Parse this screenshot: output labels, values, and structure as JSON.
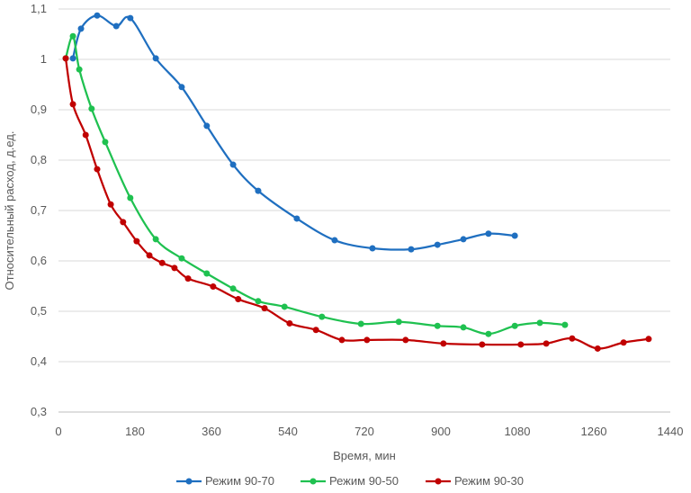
{
  "chart_data": {
    "type": "line",
    "title": "",
    "xlabel": "Время, мин",
    "ylabel": "Относительный расход, д.ед.",
    "xlim": [
      0,
      1440
    ],
    "ylim": [
      0.3,
      1.1
    ],
    "xticks": [
      0,
      180,
      360,
      540,
      720,
      900,
      1080,
      1260,
      1440
    ],
    "yticks": [
      0.3,
      0.4,
      0.5,
      0.6,
      0.7,
      0.8,
      0.9,
      1.0,
      1.1
    ],
    "xtick_labels": [
      "0",
      "180",
      "360",
      "540",
      "720",
      "900",
      "1080",
      "1260",
      "1440"
    ],
    "ytick_labels": [
      "0,3",
      "0,4",
      "0,5",
      "0,6",
      "0,7",
      "0,8",
      "0,9",
      "1",
      "1,1"
    ],
    "grid": "horizontal",
    "legend": "bottom",
    "series": [
      {
        "name": "Режим 90-70",
        "color": "#1f6fc0",
        "x": [
          34,
          53,
          91,
          136,
          169,
          229,
          290,
          349,
          411,
          470,
          561,
          650,
          739,
          830,
          892,
          953,
          1012,
          1074
        ],
        "y": [
          1.002,
          1.061,
          1.087,
          1.066,
          1.082,
          1.002,
          0.945,
          0.868,
          0.791,
          0.739,
          0.684,
          0.641,
          0.625,
          0.623,
          0.632,
          0.643,
          0.654,
          0.65
        ]
      },
      {
        "name": "Режим 90-50",
        "color": "#1fc150",
        "x": [
          17,
          34,
          49,
          78,
          110,
          169,
          229,
          290,
          349,
          411,
          470,
          532,
          620,
          712,
          801,
          892,
          953,
          1012,
          1074,
          1133,
          1192
        ],
        "y": [
          1.002,
          1.046,
          0.98,
          0.902,
          0.836,
          0.725,
          0.643,
          0.605,
          0.575,
          0.545,
          0.52,
          0.509,
          0.489,
          0.475,
          0.479,
          0.471,
          0.468,
          0.455,
          0.471,
          0.477,
          0.473
        ]
      },
      {
        "name": "Режим 90-30",
        "color": "#c00000",
        "x": [
          17,
          34,
          64,
          91,
          123,
          152,
          184,
          214,
          244,
          273,
          305,
          364,
          423,
          485,
          544,
          606,
          667,
          726,
          817,
          906,
          997,
          1088,
          1148,
          1209,
          1269,
          1330,
          1389
        ],
        "y": [
          1.002,
          0.911,
          0.85,
          0.782,
          0.712,
          0.677,
          0.639,
          0.611,
          0.596,
          0.586,
          0.565,
          0.549,
          0.524,
          0.506,
          0.476,
          0.463,
          0.443,
          0.443,
          0.443,
          0.436,
          0.434,
          0.434,
          0.436,
          0.446,
          0.426,
          0.438,
          0.445
        ]
      }
    ]
  }
}
